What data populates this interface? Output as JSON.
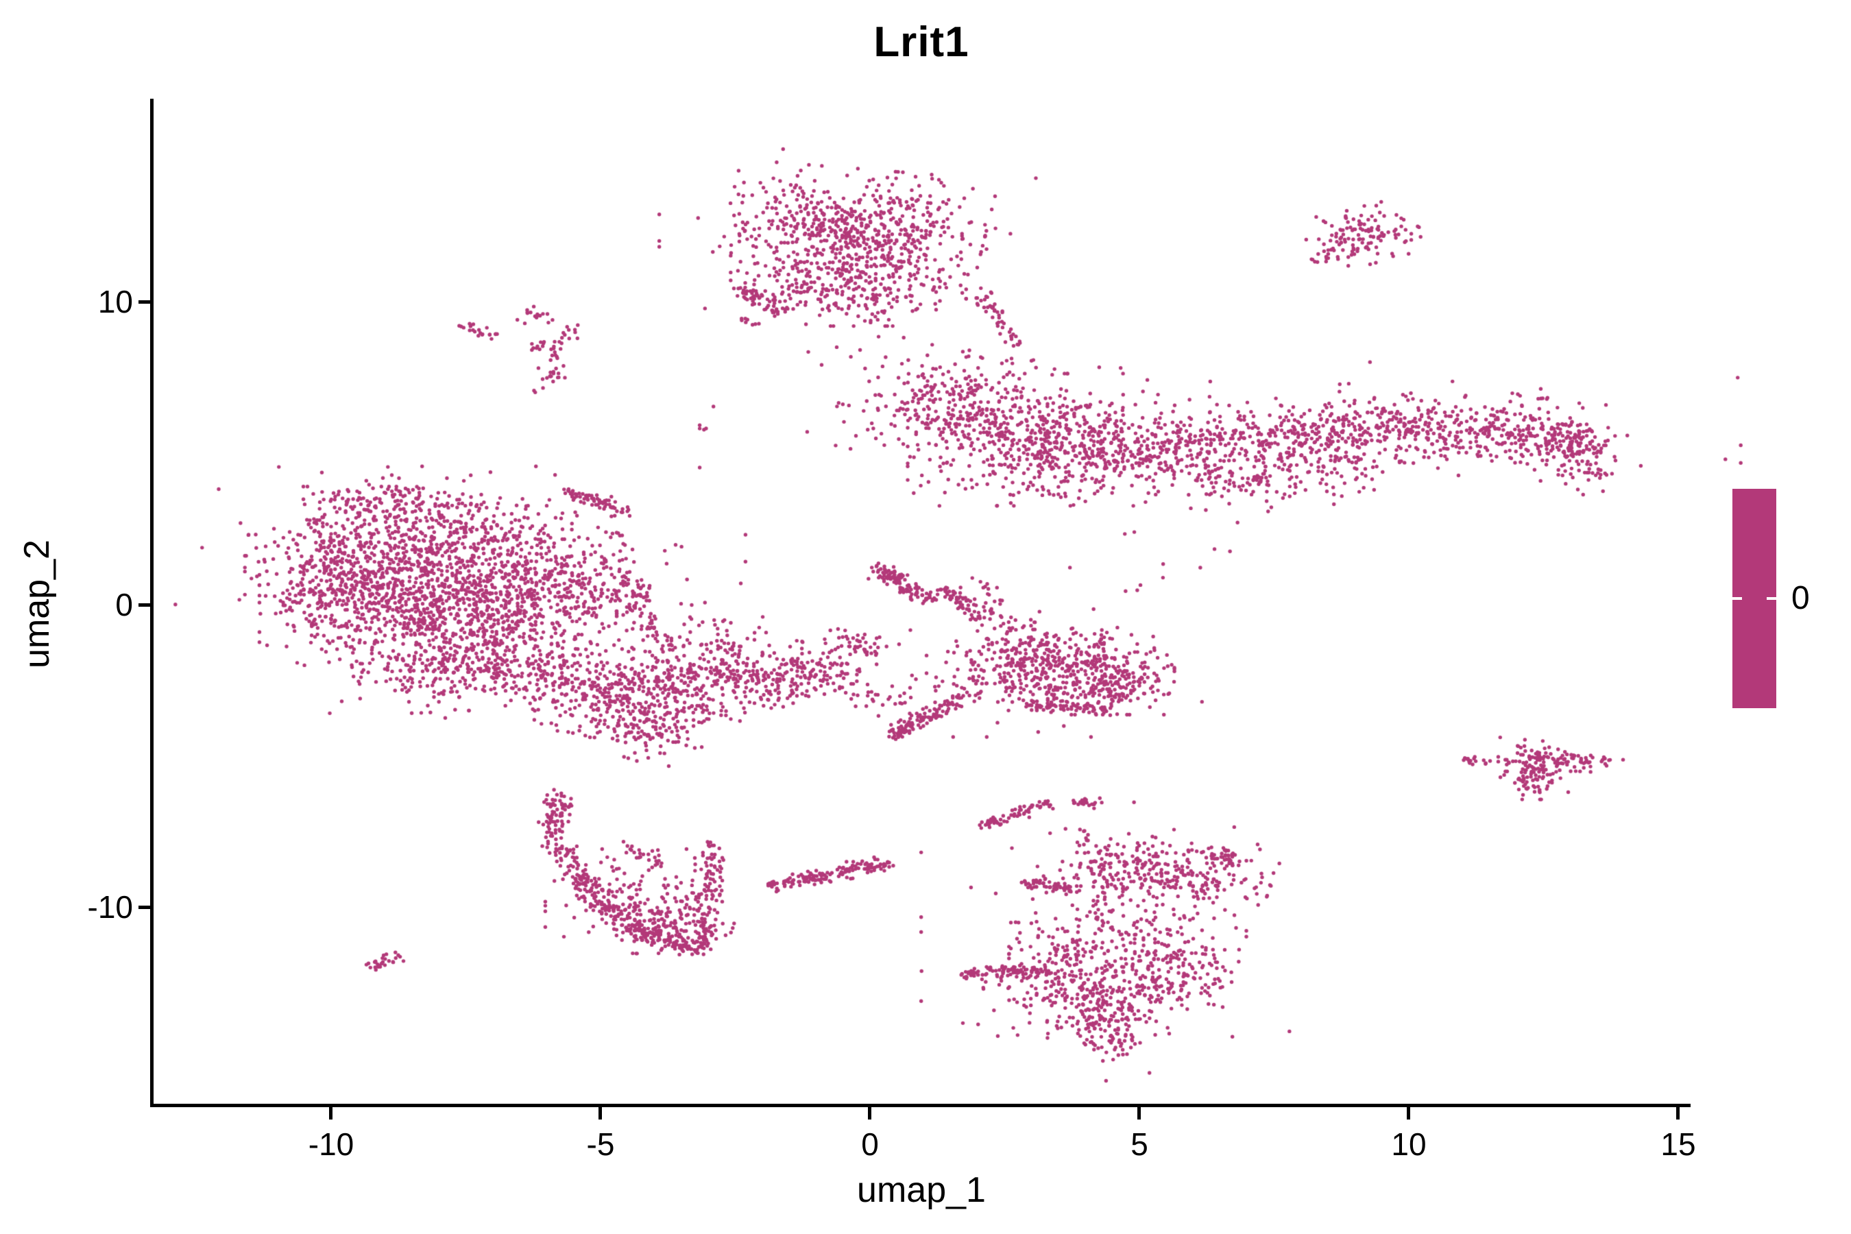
{
  "title": "Lrit1",
  "axes": {
    "x_label": "umap_1",
    "y_label": "umap_2",
    "x_tick_labels": [
      "-10",
      "-5",
      "0",
      "5",
      "10",
      "15"
    ],
    "y_tick_labels": [
      "10",
      "0",
      "-10"
    ]
  },
  "legend": {
    "label": "0"
  },
  "colors": {
    "point": "#B33979",
    "axis": "#000000",
    "background": "#FFFFFF"
  },
  "chart_data": {
    "type": "scatter",
    "title": "Lrit1",
    "xlabel": "umap_1",
    "ylabel": "umap_2",
    "xlim": [
      -13.3,
      15.2
    ],
    "ylim": [
      -16.5,
      16.7
    ],
    "x_tick_values": [
      -10,
      -5,
      0,
      5,
      10,
      15
    ],
    "y_tick_values": [
      10,
      0,
      -10
    ],
    "grid": false,
    "legend": {
      "type": "colorbar",
      "position": "right",
      "tick_label": "0",
      "single_color": "#B33979"
    },
    "point_color": "#B33979",
    "point_radius_px": 2.7,
    "seed": 7,
    "description": "UMAP embedding, all cells at expression value 0 (single magenta color). Clusters approximated as gaussian blobs and line streaks in data coordinates.",
    "blob_format": "[cx, cy, sx, sy, rot_deg, n]",
    "blobs": [
      [
        -0.25,
        12.55,
        1.05,
        0.8,
        -8,
        520
      ],
      [
        -0.4,
        10.7,
        0.95,
        0.65,
        0,
        320
      ],
      [
        0.0,
        11.6,
        1.7,
        1.5,
        0,
        70
      ],
      [
        9.15,
        12.25,
        0.45,
        0.42,
        25,
        120
      ],
      [
        8.55,
        11.55,
        0.16,
        0.1,
        0,
        12
      ],
      [
        8.3,
        11.4,
        0.05,
        0.05,
        0,
        3
      ],
      [
        -6.25,
        9.55,
        0.18,
        0.13,
        0,
        16
      ],
      [
        -5.6,
        8.9,
        0.1,
        0.18,
        0,
        12
      ],
      [
        -6.02,
        8.55,
        0.18,
        0.11,
        0,
        16
      ],
      [
        -5.95,
        7.62,
        0.13,
        0.2,
        0,
        18
      ],
      [
        -6.18,
        7.1,
        0.05,
        0.05,
        0,
        2
      ],
      [
        -5.88,
        8.2,
        0.08,
        0.06,
        0,
        4
      ],
      [
        1.65,
        6.55,
        0.95,
        0.8,
        -15,
        300
      ],
      [
        3.0,
        5.45,
        1.0,
        0.95,
        0,
        380
      ],
      [
        4.6,
        5.0,
        0.8,
        0.7,
        0,
        230
      ],
      [
        6.2,
        5.3,
        0.8,
        0.6,
        0,
        170
      ],
      [
        7.8,
        5.6,
        0.8,
        0.5,
        -5,
        150
      ],
      [
        9.3,
        5.9,
        0.8,
        0.5,
        -5,
        160
      ],
      [
        10.8,
        5.95,
        0.8,
        0.45,
        0,
        150
      ],
      [
        12.2,
        5.6,
        0.7,
        0.5,
        10,
        160
      ],
      [
        13.25,
        4.9,
        0.35,
        0.55,
        0,
        90
      ],
      [
        12.9,
        5.35,
        0.3,
        0.3,
        0,
        50
      ],
      [
        7.0,
        4.0,
        0.7,
        0.4,
        0,
        80
      ],
      [
        8.6,
        4.5,
        0.6,
        0.35,
        0,
        60
      ],
      [
        6.5,
        5.6,
        4.2,
        1.05,
        0,
        130
      ],
      [
        5.8,
        2.2,
        1.4,
        1.3,
        0,
        16
      ],
      [
        -9.3,
        1.6,
        1.0,
        1.0,
        0,
        380
      ],
      [
        -7.7,
        1.9,
        1.0,
        0.9,
        0,
        370
      ],
      [
        -6.3,
        1.2,
        0.8,
        0.9,
        0,
        250
      ],
      [
        -8.8,
        -0.2,
        1.1,
        0.85,
        0,
        380
      ],
      [
        -7.0,
        -0.5,
        1.0,
        0.8,
        0,
        340
      ],
      [
        -9.95,
        0.6,
        0.55,
        0.9,
        0,
        150
      ],
      [
        -7.3,
        -2.1,
        1.0,
        0.6,
        5,
        290
      ],
      [
        -5.1,
        -2.8,
        0.85,
        0.65,
        -20,
        270
      ],
      [
        -4.1,
        -4.1,
        0.5,
        0.45,
        -30,
        110
      ],
      [
        -5.3,
        0.4,
        0.5,
        0.45,
        0,
        90
      ],
      [
        -7.6,
        0.2,
        2.3,
        1.9,
        0,
        150
      ],
      [
        -8.9,
        3.4,
        0.9,
        0.5,
        0,
        110
      ],
      [
        -3.6,
        -2.5,
        0.5,
        0.45,
        0,
        110
      ],
      [
        -2.6,
        -2.3,
        0.5,
        0.4,
        0,
        100
      ],
      [
        -1.6,
        -2.5,
        0.5,
        0.4,
        0,
        90
      ],
      [
        -0.9,
        -2.2,
        0.35,
        0.3,
        0,
        60
      ],
      [
        -2.5,
        -2.4,
        1.6,
        0.7,
        0,
        70
      ],
      [
        -3.2,
        -3.5,
        0.6,
        0.3,
        10,
        40
      ],
      [
        -3.1,
        -1.2,
        0.8,
        0.5,
        0,
        70
      ],
      [
        -0.15,
        -1.35,
        0.3,
        0.27,
        0,
        50
      ],
      [
        0.3,
        -3.1,
        0.4,
        0.25,
        0,
        25
      ],
      [
        0.35,
        0.95,
        0.2,
        0.13,
        0,
        25
      ],
      [
        3.7,
        -2.0,
        0.75,
        0.6,
        -10,
        280
      ],
      [
        4.5,
        -2.6,
        0.5,
        0.45,
        0,
        150
      ],
      [
        2.7,
        -1.55,
        0.5,
        0.4,
        -20,
        90
      ],
      [
        2.2,
        -2.6,
        0.5,
        0.4,
        0,
        60
      ],
      [
        3.5,
        -2.3,
        1.2,
        0.9,
        0,
        60
      ],
      [
        -4.3,
        -9.8,
        0.75,
        0.75,
        0,
        150
      ],
      [
        -3.6,
        -10.6,
        0.5,
        0.4,
        0,
        90
      ],
      [
        -5.75,
        -6.45,
        0.13,
        0.18,
        0,
        22
      ],
      [
        5.3,
        -8.85,
        0.95,
        0.5,
        -12,
        280
      ],
      [
        6.55,
        -8.4,
        0.28,
        0.22,
        0,
        45
      ],
      [
        4.8,
        -10.6,
        0.95,
        0.6,
        0,
        110
      ],
      [
        5.7,
        -11.9,
        0.5,
        0.5,
        0,
        110
      ],
      [
        4.3,
        -12.7,
        0.95,
        0.6,
        5,
        300
      ],
      [
        3.5,
        -11.6,
        0.4,
        0.35,
        0,
        60
      ],
      [
        4.3,
        -13.9,
        0.5,
        0.35,
        0,
        70
      ],
      [
        4.55,
        -14.5,
        0.25,
        0.25,
        0,
        35
      ],
      [
        4.4,
        -10.9,
        1.5,
        2.1,
        0,
        90
      ],
      [
        12.35,
        -5.4,
        0.3,
        0.45,
        0,
        120
      ],
      [
        13.05,
        -5.15,
        0.4,
        0.15,
        -5,
        60
      ],
      [
        11.75,
        -5.08,
        0.05,
        0.04,
        0,
        2
      ],
      [
        12.0,
        -5.2,
        0.05,
        0.04,
        0,
        2
      ]
    ],
    "streak_format": "[x1, y1, x2, y2, width, n]",
    "streaks": [
      [
        -2.45,
        10.45,
        -1.65,
        9.65,
        0.1,
        55
      ],
      [
        -2.35,
        9.45,
        -2.05,
        9.25,
        0.06,
        8
      ],
      [
        2.05,
        10.35,
        2.75,
        8.55,
        0.09,
        45
      ],
      [
        -7.62,
        9.25,
        -6.95,
        8.9,
        0.07,
        22
      ],
      [
        -5.65,
        3.8,
        -4.5,
        3.05,
        0.12,
        70
      ],
      [
        -4.8,
        2.35,
        -4.55,
        2.2,
        0.06,
        6
      ],
      [
        -4.95,
        1.85,
        -4.2,
        0.2,
        0.14,
        55
      ],
      [
        -4.45,
        0.0,
        -3.95,
        -1.15,
        0.12,
        35
      ],
      [
        0.1,
        1.28,
        1.15,
        0.08,
        0.1,
        90
      ],
      [
        1.35,
        0.55,
        2.1,
        -0.55,
        0.09,
        65
      ],
      [
        1.95,
        0.85,
        2.7,
        -0.95,
        0.18,
        40
      ],
      [
        0.35,
        -4.4,
        1.5,
        -3.2,
        0.12,
        110
      ],
      [
        1.55,
        -3.15,
        1.95,
        -2.95,
        0.1,
        12
      ],
      [
        2.9,
        -3.3,
        4.4,
        -3.45,
        0.1,
        75
      ],
      [
        -5.75,
        -6.6,
        -5.95,
        -7.6,
        0.12,
        55
      ],
      [
        -5.9,
        -7.7,
        -5.3,
        -9.2,
        0.14,
        70
      ],
      [
        -5.3,
        -9.2,
        -4.4,
        -10.6,
        0.15,
        85
      ],
      [
        -4.45,
        -10.65,
        -3.1,
        -11.45,
        0.16,
        130
      ],
      [
        -3.1,
        -11.3,
        -2.9,
        -7.9,
        0.14,
        120
      ],
      [
        -4.55,
        -7.9,
        -3.95,
        -8.6,
        0.1,
        22
      ],
      [
        -1.85,
        -9.35,
        -0.75,
        -8.95,
        0.12,
        80
      ],
      [
        -0.6,
        -8.85,
        0.35,
        -8.5,
        0.12,
        65
      ],
      [
        2.1,
        -7.3,
        3.35,
        -6.55,
        0.09,
        60
      ],
      [
        3.8,
        -6.5,
        4.2,
        -6.65,
        0.08,
        22
      ],
      [
        3.95,
        -7.4,
        4.3,
        -9.1,
        0.12,
        16
      ],
      [
        2.8,
        -9.15,
        3.85,
        -9.45,
        0.1,
        55
      ],
      [
        1.7,
        -12.15,
        3.45,
        -12.05,
        0.1,
        90
      ],
      [
        11.0,
        -5.12,
        11.5,
        -5.2,
        0.06,
        16
      ],
      [
        -9.3,
        -12.0,
        -8.72,
        -11.62,
        0.09,
        28
      ]
    ]
  }
}
